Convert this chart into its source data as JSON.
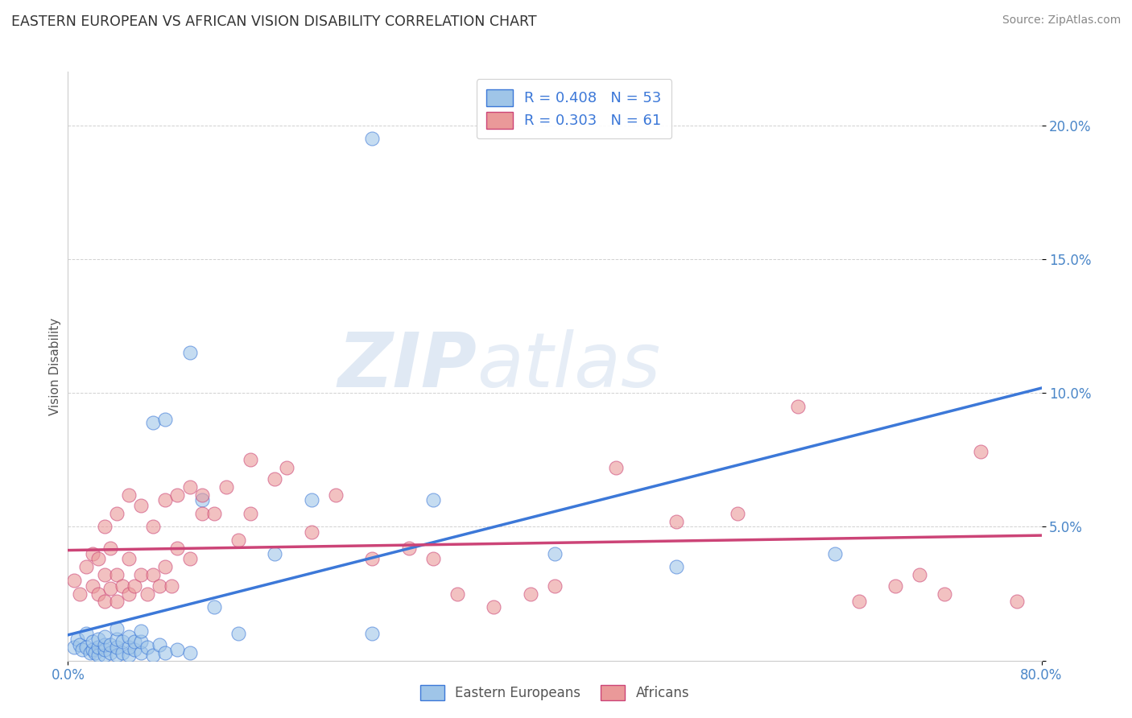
{
  "title": "EASTERN EUROPEAN VS AFRICAN VISION DISABILITY CORRELATION CHART",
  "source": "Source: ZipAtlas.com",
  "ylabel": "Vision Disability",
  "xlim": [
    0.0,
    0.8
  ],
  "ylim": [
    0.0,
    0.22
  ],
  "yticks": [
    0.0,
    0.05,
    0.1,
    0.15,
    0.2
  ],
  "ytick_labels": [
    "",
    "5.0%",
    "10.0%",
    "15.0%",
    "20.0%"
  ],
  "xtick_left_label": "0.0%",
  "xtick_right_label": "80.0%",
  "legend_line1": "R = 0.408   N = 53",
  "legend_line2": "R = 0.303   N = 61",
  "legend_label_blue": "Eastern Europeans",
  "legend_label_pink": "Africans",
  "blue_color": "#9fc5e8",
  "pink_color": "#ea9999",
  "blue_line_color": "#3c78d8",
  "pink_line_color": "#cc4477",
  "watermark_zip": "ZIP",
  "watermark_atlas": "atlas",
  "blue_scatter_x": [
    0.005,
    0.008,
    0.01,
    0.012,
    0.015,
    0.015,
    0.018,
    0.02,
    0.02,
    0.022,
    0.025,
    0.025,
    0.025,
    0.03,
    0.03,
    0.03,
    0.03,
    0.035,
    0.035,
    0.04,
    0.04,
    0.04,
    0.04,
    0.045,
    0.045,
    0.05,
    0.05,
    0.05,
    0.055,
    0.055,
    0.06,
    0.06,
    0.06,
    0.065,
    0.07,
    0.07,
    0.075,
    0.08,
    0.08,
    0.09,
    0.1,
    0.1,
    0.11,
    0.12,
    0.14,
    0.17,
    0.2,
    0.25,
    0.3,
    0.4,
    0.5,
    0.63,
    0.25
  ],
  "blue_scatter_y": [
    0.005,
    0.008,
    0.006,
    0.004,
    0.005,
    0.01,
    0.003,
    0.004,
    0.007,
    0.003,
    0.002,
    0.005,
    0.008,
    0.002,
    0.004,
    0.006,
    0.009,
    0.003,
    0.006,
    0.002,
    0.005,
    0.008,
    0.012,
    0.003,
    0.007,
    0.002,
    0.005,
    0.009,
    0.004,
    0.007,
    0.003,
    0.007,
    0.011,
    0.005,
    0.002,
    0.089,
    0.006,
    0.09,
    0.003,
    0.004,
    0.003,
    0.115,
    0.06,
    0.02,
    0.01,
    0.04,
    0.06,
    0.01,
    0.06,
    0.04,
    0.035,
    0.04,
    0.195
  ],
  "pink_scatter_x": [
    0.005,
    0.01,
    0.015,
    0.02,
    0.02,
    0.025,
    0.025,
    0.03,
    0.03,
    0.03,
    0.035,
    0.035,
    0.04,
    0.04,
    0.04,
    0.045,
    0.05,
    0.05,
    0.05,
    0.055,
    0.06,
    0.06,
    0.065,
    0.07,
    0.07,
    0.075,
    0.08,
    0.08,
    0.085,
    0.09,
    0.09,
    0.1,
    0.1,
    0.11,
    0.11,
    0.12,
    0.13,
    0.14,
    0.15,
    0.15,
    0.17,
    0.18,
    0.2,
    0.22,
    0.25,
    0.28,
    0.3,
    0.32,
    0.35,
    0.38,
    0.4,
    0.45,
    0.5,
    0.55,
    0.6,
    0.65,
    0.68,
    0.7,
    0.72,
    0.75,
    0.78
  ],
  "pink_scatter_y": [
    0.03,
    0.025,
    0.035,
    0.028,
    0.04,
    0.025,
    0.038,
    0.022,
    0.032,
    0.05,
    0.027,
    0.042,
    0.022,
    0.032,
    0.055,
    0.028,
    0.025,
    0.038,
    0.062,
    0.028,
    0.032,
    0.058,
    0.025,
    0.032,
    0.05,
    0.028,
    0.035,
    0.06,
    0.028,
    0.042,
    0.062,
    0.038,
    0.065,
    0.055,
    0.062,
    0.055,
    0.065,
    0.045,
    0.055,
    0.075,
    0.068,
    0.072,
    0.048,
    0.062,
    0.038,
    0.042,
    0.038,
    0.025,
    0.02,
    0.025,
    0.028,
    0.072,
    0.052,
    0.055,
    0.095,
    0.022,
    0.028,
    0.032,
    0.025,
    0.078,
    0.022
  ]
}
